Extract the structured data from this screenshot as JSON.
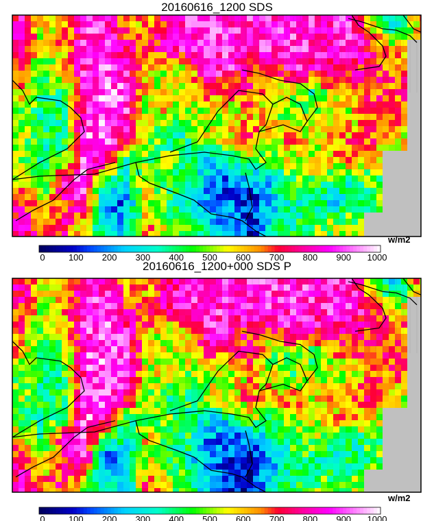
{
  "panels": [
    {
      "title": "20160616_1200 SDS",
      "unit": "w/m2",
      "grid_values_wm2": [
        [
          800,
          550,
          600,
          850,
          850,
          650,
          600,
          750,
          850,
          850,
          850,
          850,
          850,
          850,
          850,
          850,
          850,
          500,
          300,
          600
        ],
        [
          700,
          500,
          650,
          850,
          880,
          750,
          700,
          800,
          850,
          850,
          850,
          850,
          850,
          850,
          850,
          850,
          850,
          750,
          600,
          null
        ],
        [
          650,
          450,
          550,
          850,
          900,
          850,
          600,
          500,
          550,
          850,
          850,
          700,
          650,
          850,
          780,
          750,
          750,
          700,
          650,
          null
        ],
        [
          600,
          400,
          450,
          880,
          900,
          880,
          550,
          550,
          600,
          700,
          650,
          750,
          500,
          550,
          400,
          600,
          650,
          700,
          700,
          null
        ],
        [
          450,
          350,
          400,
          850,
          920,
          850,
          500,
          600,
          450,
          500,
          500,
          600,
          550,
          450,
          550,
          500,
          550,
          700,
          650,
          null
        ],
        [
          500,
          400,
          400,
          900,
          900,
          800,
          550,
          350,
          400,
          550,
          600,
          650,
          600,
          650,
          550,
          600,
          650,
          700,
          550,
          null
        ],
        [
          450,
          350,
          450,
          900,
          850,
          400,
          450,
          500,
          400,
          300,
          350,
          500,
          450,
          550,
          500,
          600,
          650,
          550,
          null,
          null
        ],
        [
          600,
          400,
          850,
          880,
          350,
          350,
          600,
          400,
          400,
          200,
          150,
          200,
          300,
          450,
          500,
          400,
          350,
          450,
          null,
          null
        ],
        [
          750,
          500,
          700,
          850,
          150,
          200,
          550,
          450,
          350,
          200,
          200,
          100,
          250,
          350,
          400,
          300,
          400,
          450,
          null,
          null
        ],
        [
          800,
          650,
          750,
          500,
          300,
          250,
          700,
          500,
          450,
          300,
          200,
          100,
          300,
          400,
          450,
          500,
          500,
          null,
          null,
          null
        ]
      ]
    },
    {
      "title": "20160616_1200+000 SDS P",
      "unit": "w/m2",
      "grid_values_wm2": [
        [
          800,
          550,
          600,
          850,
          850,
          650,
          600,
          750,
          850,
          850,
          850,
          850,
          850,
          850,
          850,
          850,
          850,
          500,
          300,
          600
        ],
        [
          700,
          500,
          650,
          850,
          880,
          750,
          700,
          800,
          850,
          850,
          850,
          850,
          850,
          850,
          850,
          850,
          850,
          750,
          600,
          null
        ],
        [
          650,
          450,
          550,
          850,
          900,
          850,
          600,
          500,
          550,
          850,
          800,
          700,
          650,
          850,
          780,
          750,
          750,
          700,
          650,
          null
        ],
        [
          600,
          400,
          450,
          880,
          900,
          880,
          550,
          550,
          600,
          700,
          650,
          750,
          450,
          500,
          400,
          600,
          650,
          700,
          700,
          null
        ],
        [
          450,
          350,
          400,
          850,
          920,
          850,
          500,
          600,
          450,
          500,
          500,
          600,
          550,
          450,
          550,
          500,
          550,
          700,
          650,
          null
        ],
        [
          500,
          400,
          400,
          900,
          900,
          800,
          550,
          350,
          400,
          550,
          600,
          650,
          600,
          650,
          550,
          600,
          650,
          700,
          550,
          null
        ],
        [
          450,
          350,
          450,
          900,
          850,
          400,
          450,
          500,
          400,
          300,
          350,
          500,
          450,
          550,
          500,
          600,
          650,
          550,
          null,
          null
        ],
        [
          600,
          400,
          850,
          880,
          350,
          350,
          600,
          400,
          400,
          200,
          150,
          200,
          300,
          450,
          500,
          400,
          350,
          450,
          null,
          null
        ],
        [
          750,
          500,
          700,
          850,
          150,
          200,
          550,
          450,
          350,
          200,
          150,
          100,
          250,
          350,
          400,
          300,
          400,
          450,
          null,
          null
        ],
        [
          800,
          650,
          750,
          500,
          300,
          250,
          700,
          500,
          450,
          250,
          150,
          80,
          300,
          400,
          450,
          500,
          500,
          null,
          null,
          null
        ]
      ]
    }
  ],
  "colorbar": {
    "ticks": [
      "0",
      "100",
      "200",
      "300",
      "400",
      "500",
      "600",
      "700",
      "800",
      "900",
      "1000"
    ],
    "range": [
      0,
      1000
    ]
  },
  "colors": {
    "missing": "#c0c0c0",
    "coastline": "#000000"
  }
}
